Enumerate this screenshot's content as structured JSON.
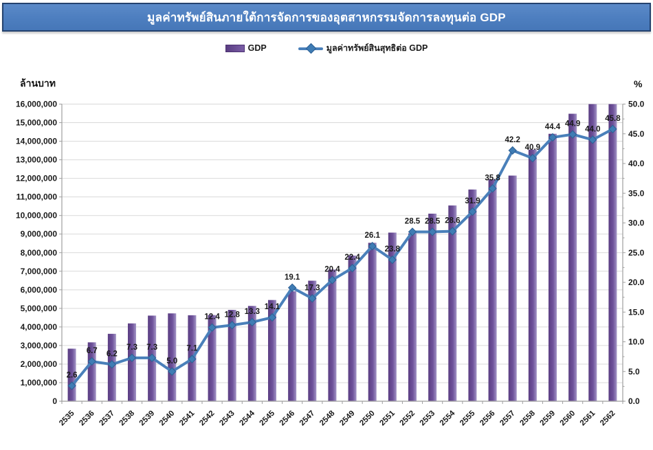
{
  "title": "มูลค่าทรัพย์สินภายใต้การจัดการของอุตสาหกรรมจัดการลงทุนต่อ GDP",
  "legend": {
    "bar_label": "GDP",
    "line_label": "มูลค่าทรัพย์สินสุทธิต่อ GDP"
  },
  "axes": {
    "left_unit": "ล้านบาท",
    "right_unit": "%"
  },
  "colors": {
    "banner_fill": "#4d7ebf",
    "banner_border": "#24426e",
    "bar_dark": "#5a3d82",
    "bar_mid": "#6f539b",
    "bar_light": "#a395c6",
    "line": "#4a80ba",
    "marker_fill": "#3f7cb4",
    "marker_stroke": "#2d5f93",
    "gridline": "#d9d9d9",
    "axis": "#9e9e9e",
    "label_text": "#1a1a1a"
  },
  "chart_data": {
    "type": "bar",
    "subtype": "bar+line combo, line on secondary axis",
    "title": "มูลค่าทรัพย์สินภายใต้การจัดการของอุตสาหกรรมจัดการลงทุนต่อ GDP",
    "categories": [
      "2535",
      "2536",
      "2537",
      "2538",
      "2539",
      "2540",
      "2541",
      "2542",
      "2543",
      "2544",
      "2545",
      "2546",
      "2547",
      "2548",
      "2549",
      "2550",
      "2551",
      "2552",
      "2553",
      "2554",
      "2555",
      "2556",
      "2557",
      "2558",
      "2559",
      "2560",
      "2561",
      "2562"
    ],
    "series": [
      {
        "name": "GDP",
        "type": "bar",
        "axis": "left",
        "unit": "ล้านบาท",
        "values": [
          2830000,
          3170000,
          3630000,
          4190000,
          4610000,
          4730000,
          4630000,
          4640000,
          4920000,
          5130000,
          5450000,
          5920000,
          6490000,
          7090000,
          7840000,
          8530000,
          9080000,
          9040000,
          10100000,
          10540000,
          11400000,
          11950000,
          12150000,
          13550000,
          14400000,
          15480000,
          16400000,
          16900000
        ],
        "note": "bars for 2561 and 2562 exceed axis max and are clipped at 16,000,000"
      },
      {
        "name": "มูลค่าทรัพย์สินสุทธิต่อ GDP",
        "type": "line",
        "axis": "right",
        "unit": "%",
        "values": [
          2.6,
          6.7,
          6.2,
          7.3,
          7.3,
          5.0,
          7.1,
          12.4,
          12.8,
          13.3,
          14.1,
          19.1,
          17.3,
          20.4,
          22.4,
          26.1,
          23.8,
          28.5,
          28.5,
          28.6,
          31.9,
          35.8,
          42.2,
          40.9,
          44.4,
          44.9,
          44.0,
          45.8
        ],
        "data_labels": true
      }
    ],
    "xlabel": "",
    "ylabel_left": "ล้านบาท",
    "ylabel_right": "%",
    "left_axis": {
      "min": 0,
      "max": 16000000,
      "step": 1000000,
      "tick_format": "#,##0"
    },
    "right_axis": {
      "min": 0,
      "max": 50,
      "step": 5,
      "minor_step": 2.5,
      "tick_format": "0.0"
    },
    "grid": "horizontal only",
    "legend_position": "top",
    "x_tick_rotation": -45
  }
}
